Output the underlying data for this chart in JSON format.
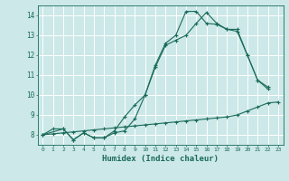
{
  "xlabel": "Humidex (Indice chaleur)",
  "xlim": [
    -0.5,
    23.5
  ],
  "ylim": [
    7.5,
    14.5
  ],
  "xticks": [
    0,
    1,
    2,
    3,
    4,
    5,
    6,
    7,
    8,
    9,
    10,
    11,
    12,
    13,
    14,
    15,
    16,
    17,
    18,
    19,
    20,
    21,
    22,
    23
  ],
  "yticks": [
    8,
    9,
    10,
    11,
    12,
    13,
    14
  ],
  "bg_color": "#cce8e8",
  "line_color": "#1a6b5a",
  "grid_color": "#ffffff",
  "line1_x": [
    0,
    1,
    2,
    3,
    4,
    5,
    6,
    7,
    8,
    9,
    10,
    11,
    12,
    13,
    14,
    15,
    16,
    17,
    18,
    19,
    20,
    21,
    22
  ],
  "line1_y": [
    8.0,
    8.3,
    8.3,
    7.75,
    8.1,
    7.85,
    7.85,
    8.2,
    8.9,
    9.5,
    10.0,
    11.4,
    12.5,
    12.75,
    13.0,
    13.6,
    14.15,
    13.6,
    13.3,
    13.3,
    12.0,
    10.75,
    10.4
  ],
  "line2_x": [
    0,
    2,
    3,
    4,
    5,
    6,
    7,
    8,
    9,
    10,
    11,
    12,
    13,
    14,
    15,
    16,
    17,
    18,
    19,
    20,
    21,
    22
  ],
  "line2_y": [
    8.0,
    8.3,
    7.75,
    8.1,
    7.85,
    7.85,
    8.1,
    8.2,
    8.8,
    10.0,
    11.5,
    12.6,
    13.0,
    14.2,
    14.2,
    13.6,
    13.55,
    13.3,
    13.2,
    12.0,
    10.75,
    10.3
  ],
  "line3_x": [
    0,
    1,
    2,
    3,
    4,
    5,
    6,
    7,
    8,
    9,
    10,
    11,
    12,
    13,
    14,
    15,
    16,
    17,
    18,
    19,
    20,
    21,
    22,
    23
  ],
  "line3_y": [
    8.0,
    8.05,
    8.1,
    8.15,
    8.2,
    8.25,
    8.3,
    8.35,
    8.4,
    8.45,
    8.5,
    8.55,
    8.6,
    8.65,
    8.7,
    8.75,
    8.8,
    8.85,
    8.9,
    9.0,
    9.2,
    9.4,
    9.6,
    9.65
  ]
}
